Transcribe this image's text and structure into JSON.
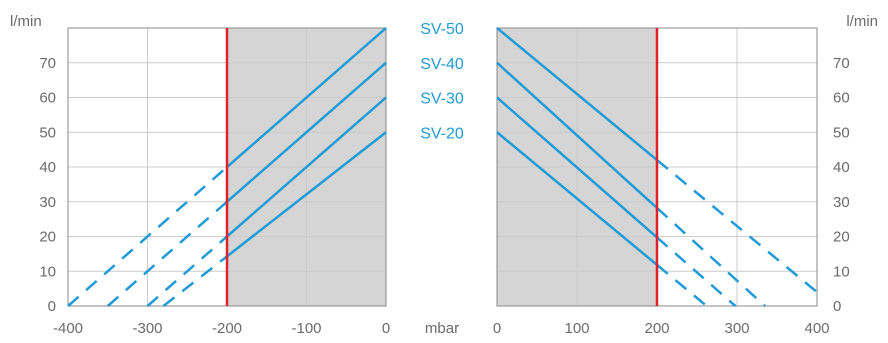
{
  "colors": {
    "series": "#1f9bd7",
    "limit": "#e0202a",
    "shade": "#d5d5d5",
    "grid": "#cccccc",
    "axis": "#888888",
    "text": "#6b6b6b"
  },
  "chart_data": [
    {
      "type": "line",
      "panel": "left",
      "xlim": [
        -400,
        0
      ],
      "ylim": [
        0,
        80
      ],
      "x_ticks": [
        "-400",
        "-300",
        "-200",
        "-100",
        "0"
      ],
      "x_tick_values": [
        -400,
        -300,
        -200,
        -100,
        0
      ],
      "highlight_tick": "-200",
      "y_ticks": [
        "0",
        "10",
        "20",
        "30",
        "40",
        "50",
        "60",
        "70"
      ],
      "y_tick_values": [
        0,
        10,
        20,
        30,
        40,
        50,
        60,
        70
      ],
      "ylabel": "l/min",
      "limit_line_x": -200,
      "shaded_region_x": [
        -200,
        0
      ],
      "grid": true,
      "series": [
        {
          "name": "SV-50",
          "x": [
            -400,
            0
          ],
          "y": [
            0,
            80
          ],
          "solid_from_x": -200
        },
        {
          "name": "SV-40",
          "x": [
            -350,
            0
          ],
          "y": [
            0,
            70
          ],
          "solid_from_x": -200
        },
        {
          "name": "SV-30",
          "x": [
            -300,
            0
          ],
          "y": [
            0,
            60
          ],
          "solid_from_x": -200
        },
        {
          "name": "SV-20",
          "x": [
            -280,
            0
          ],
          "y": [
            0,
            50
          ],
          "solid_from_x": -200
        }
      ]
    },
    {
      "type": "line",
      "panel": "right",
      "xlim": [
        0,
        400
      ],
      "ylim": [
        0,
        80
      ],
      "x_ticks": [
        "0",
        "100",
        "200",
        "300",
        "400"
      ],
      "x_tick_values": [
        0,
        100,
        200,
        300,
        400
      ],
      "highlight_tick": "200",
      "y_ticks": [
        "0",
        "10",
        "20",
        "30",
        "40",
        "50",
        "60",
        "70"
      ],
      "y_tick_values": [
        0,
        10,
        20,
        30,
        40,
        50,
        60,
        70
      ],
      "ylabel": "l/min",
      "limit_line_x": 200,
      "shaded_region_x": [
        0,
        200
      ],
      "grid": true,
      "series": [
        {
          "name": "SV-50",
          "x": [
            0,
            400
          ],
          "y": [
            80,
            4
          ],
          "solid_to_x": 200
        },
        {
          "name": "SV-40",
          "x": [
            0,
            335
          ],
          "y": [
            70,
            0
          ],
          "solid_to_x": 200
        },
        {
          "name": "SV-30",
          "x": [
            0,
            298
          ],
          "y": [
            60,
            0
          ],
          "solid_to_x": 200
        },
        {
          "name": "SV-20",
          "x": [
            0,
            262
          ],
          "y": [
            50,
            0
          ],
          "solid_to_x": 200
        }
      ]
    }
  ],
  "xlabel_unit": "mbar",
  "series_labels": [
    {
      "text": "SV-50",
      "y": 80
    },
    {
      "text": "SV-40",
      "y": 70
    },
    {
      "text": "SV-30",
      "y": 60
    },
    {
      "text": "SV-20",
      "y": 50
    }
  ]
}
